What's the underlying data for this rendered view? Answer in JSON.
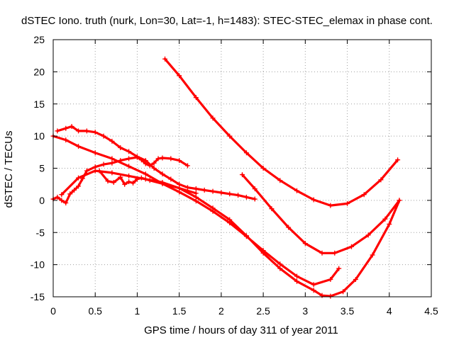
{
  "chart_data": {
    "type": "scatter",
    "title": "dSTEC Iono. truth (nurk, Lon=30, Lat=-1, h=1483): STEC-STEC_elemax in phase cont.",
    "xlabel": "GPS time / hours of day 311 of year 2011",
    "ylabel": "dSTEC  / TECUs",
    "xlim": [
      0,
      4.5
    ],
    "ylim": [
      -15,
      25
    ],
    "xticks": [
      0,
      0.5,
      1,
      1.5,
      2,
      2.5,
      3,
      3.5,
      4,
      4.5
    ],
    "yticks": [
      -15,
      -10,
      -5,
      0,
      5,
      10,
      15,
      20,
      25
    ],
    "xtick_labels": [
      "0",
      "0.5",
      "1",
      "1.5",
      "2",
      "2.5",
      "3",
      "3.5",
      "4",
      "4.5"
    ],
    "ytick_labels": [
      "-15",
      "-10",
      "-5",
      "0",
      "5",
      "10",
      "15",
      "20",
      "25"
    ],
    "grid": true,
    "legend": false,
    "marker": "plus",
    "color": "#ff0000",
    "series": [
      {
        "points": [
          [
            1.33,
            22.0
          ],
          [
            1.5,
            19.4
          ],
          [
            1.7,
            16.0
          ],
          [
            1.9,
            12.8
          ],
          [
            2.1,
            10.0
          ],
          [
            2.3,
            7.4
          ],
          [
            2.5,
            5.0
          ],
          [
            2.7,
            3.1
          ],
          [
            2.9,
            1.5
          ],
          [
            3.1,
            0.1
          ],
          [
            3.3,
            -0.8
          ],
          [
            3.5,
            -0.5
          ],
          [
            3.7,
            0.9
          ],
          [
            3.9,
            3.2
          ],
          [
            4.1,
            6.3
          ]
        ]
      },
      {
        "points": [
          [
            2.25,
            4.0
          ],
          [
            2.4,
            1.8
          ],
          [
            2.6,
            -1.3
          ],
          [
            2.8,
            -4.2
          ],
          [
            3.0,
            -6.7
          ],
          [
            3.2,
            -8.2
          ],
          [
            3.35,
            -8.2
          ],
          [
            3.55,
            -7.2
          ],
          [
            3.75,
            -5.4
          ],
          [
            3.95,
            -2.9
          ],
          [
            4.12,
            0.0
          ]
        ]
      },
      {
        "points": [
          [
            0.0,
            10.0
          ],
          [
            0.15,
            9.4
          ],
          [
            0.3,
            8.4
          ],
          [
            0.5,
            7.4
          ],
          [
            0.7,
            6.5
          ],
          [
            0.9,
            5.3
          ],
          [
            1.1,
            4.1
          ],
          [
            1.3,
            2.6
          ],
          [
            1.5,
            1.3
          ],
          [
            1.7,
            -0.1
          ],
          [
            1.9,
            -1.7
          ],
          [
            2.1,
            -3.5
          ],
          [
            2.3,
            -5.6
          ],
          [
            2.5,
            -7.8
          ],
          [
            2.7,
            -9.9
          ],
          [
            2.9,
            -11.8
          ],
          [
            3.1,
            -13.1
          ],
          [
            3.3,
            -12.3
          ],
          [
            3.4,
            -10.6
          ]
        ]
      },
      {
        "points": [
          [
            0.1,
            0.9
          ],
          [
            0.3,
            3.5
          ],
          [
            0.5,
            4.6
          ],
          [
            0.7,
            4.3
          ],
          [
            0.9,
            3.8
          ],
          [
            1.1,
            3.3
          ],
          [
            1.3,
            2.8
          ],
          [
            1.5,
            1.9
          ],
          [
            1.7,
            0.5
          ],
          [
            1.9,
            -1.2
          ],
          [
            2.1,
            -3.0
          ],
          [
            2.3,
            -5.5
          ],
          [
            2.5,
            -8.2
          ],
          [
            2.7,
            -10.6
          ],
          [
            2.9,
            -12.6
          ],
          [
            3.1,
            -14.0
          ],
          [
            3.2,
            -14.8
          ],
          [
            3.3,
            -14.9
          ],
          [
            3.45,
            -14.2
          ],
          [
            3.6,
            -12.3
          ],
          [
            3.8,
            -8.5
          ],
          [
            4.0,
            -3.7
          ],
          [
            4.12,
            0.0
          ]
        ]
      },
      {
        "points": [
          [
            0.0,
            0.2
          ],
          [
            0.05,
            0.5
          ],
          [
            0.1,
            0.0
          ],
          [
            0.15,
            -0.4
          ],
          [
            0.2,
            1.0
          ],
          [
            0.25,
            1.6
          ],
          [
            0.3,
            2.2
          ],
          [
            0.35,
            3.4
          ],
          [
            0.4,
            4.6
          ],
          [
            0.5,
            5.2
          ],
          [
            0.6,
            5.6
          ],
          [
            0.7,
            5.8
          ],
          [
            0.8,
            6.2
          ],
          [
            0.9,
            6.5
          ],
          [
            1.0,
            6.7
          ],
          [
            1.05,
            6.3
          ],
          [
            1.1,
            5.7
          ],
          [
            1.15,
            5.4
          ],
          [
            1.2,
            5.8
          ],
          [
            1.25,
            6.5
          ],
          [
            1.3,
            6.6
          ],
          [
            1.4,
            6.5
          ],
          [
            1.5,
            6.2
          ],
          [
            1.6,
            5.4
          ]
        ]
      },
      {
        "points": [
          [
            0.05,
            10.8
          ],
          [
            0.15,
            11.2
          ],
          [
            0.22,
            11.5
          ],
          [
            0.3,
            10.8
          ],
          [
            0.4,
            10.8
          ],
          [
            0.5,
            10.6
          ],
          [
            0.6,
            10.0
          ],
          [
            0.7,
            9.2
          ],
          [
            0.8,
            8.2
          ],
          [
            0.9,
            7.6
          ],
          [
            1.0,
            6.8
          ],
          [
            1.1,
            6.2
          ],
          [
            1.2,
            5.0
          ],
          [
            1.3,
            4.1
          ],
          [
            1.4,
            3.3
          ],
          [
            1.5,
            2.5
          ],
          [
            1.6,
            2.0
          ],
          [
            1.7,
            1.8
          ],
          [
            1.8,
            1.6
          ],
          [
            1.9,
            1.4
          ],
          [
            2.0,
            1.2
          ],
          [
            2.1,
            1.0
          ],
          [
            2.2,
            0.8
          ],
          [
            2.3,
            0.5
          ],
          [
            2.4,
            0.2
          ]
        ]
      },
      {
        "points": [
          [
            0.55,
            4.6
          ],
          [
            0.65,
            3.0
          ],
          [
            0.72,
            2.8
          ],
          [
            0.8,
            3.6
          ],
          [
            0.85,
            2.5
          ],
          [
            0.9,
            2.9
          ],
          [
            0.95,
            2.7
          ],
          [
            1.0,
            3.3
          ],
          [
            1.05,
            3.5
          ],
          [
            1.15,
            3.1
          ],
          [
            1.3,
            2.6
          ],
          [
            1.5,
            1.9
          ],
          [
            1.7,
            1.1
          ]
        ]
      }
    ]
  }
}
